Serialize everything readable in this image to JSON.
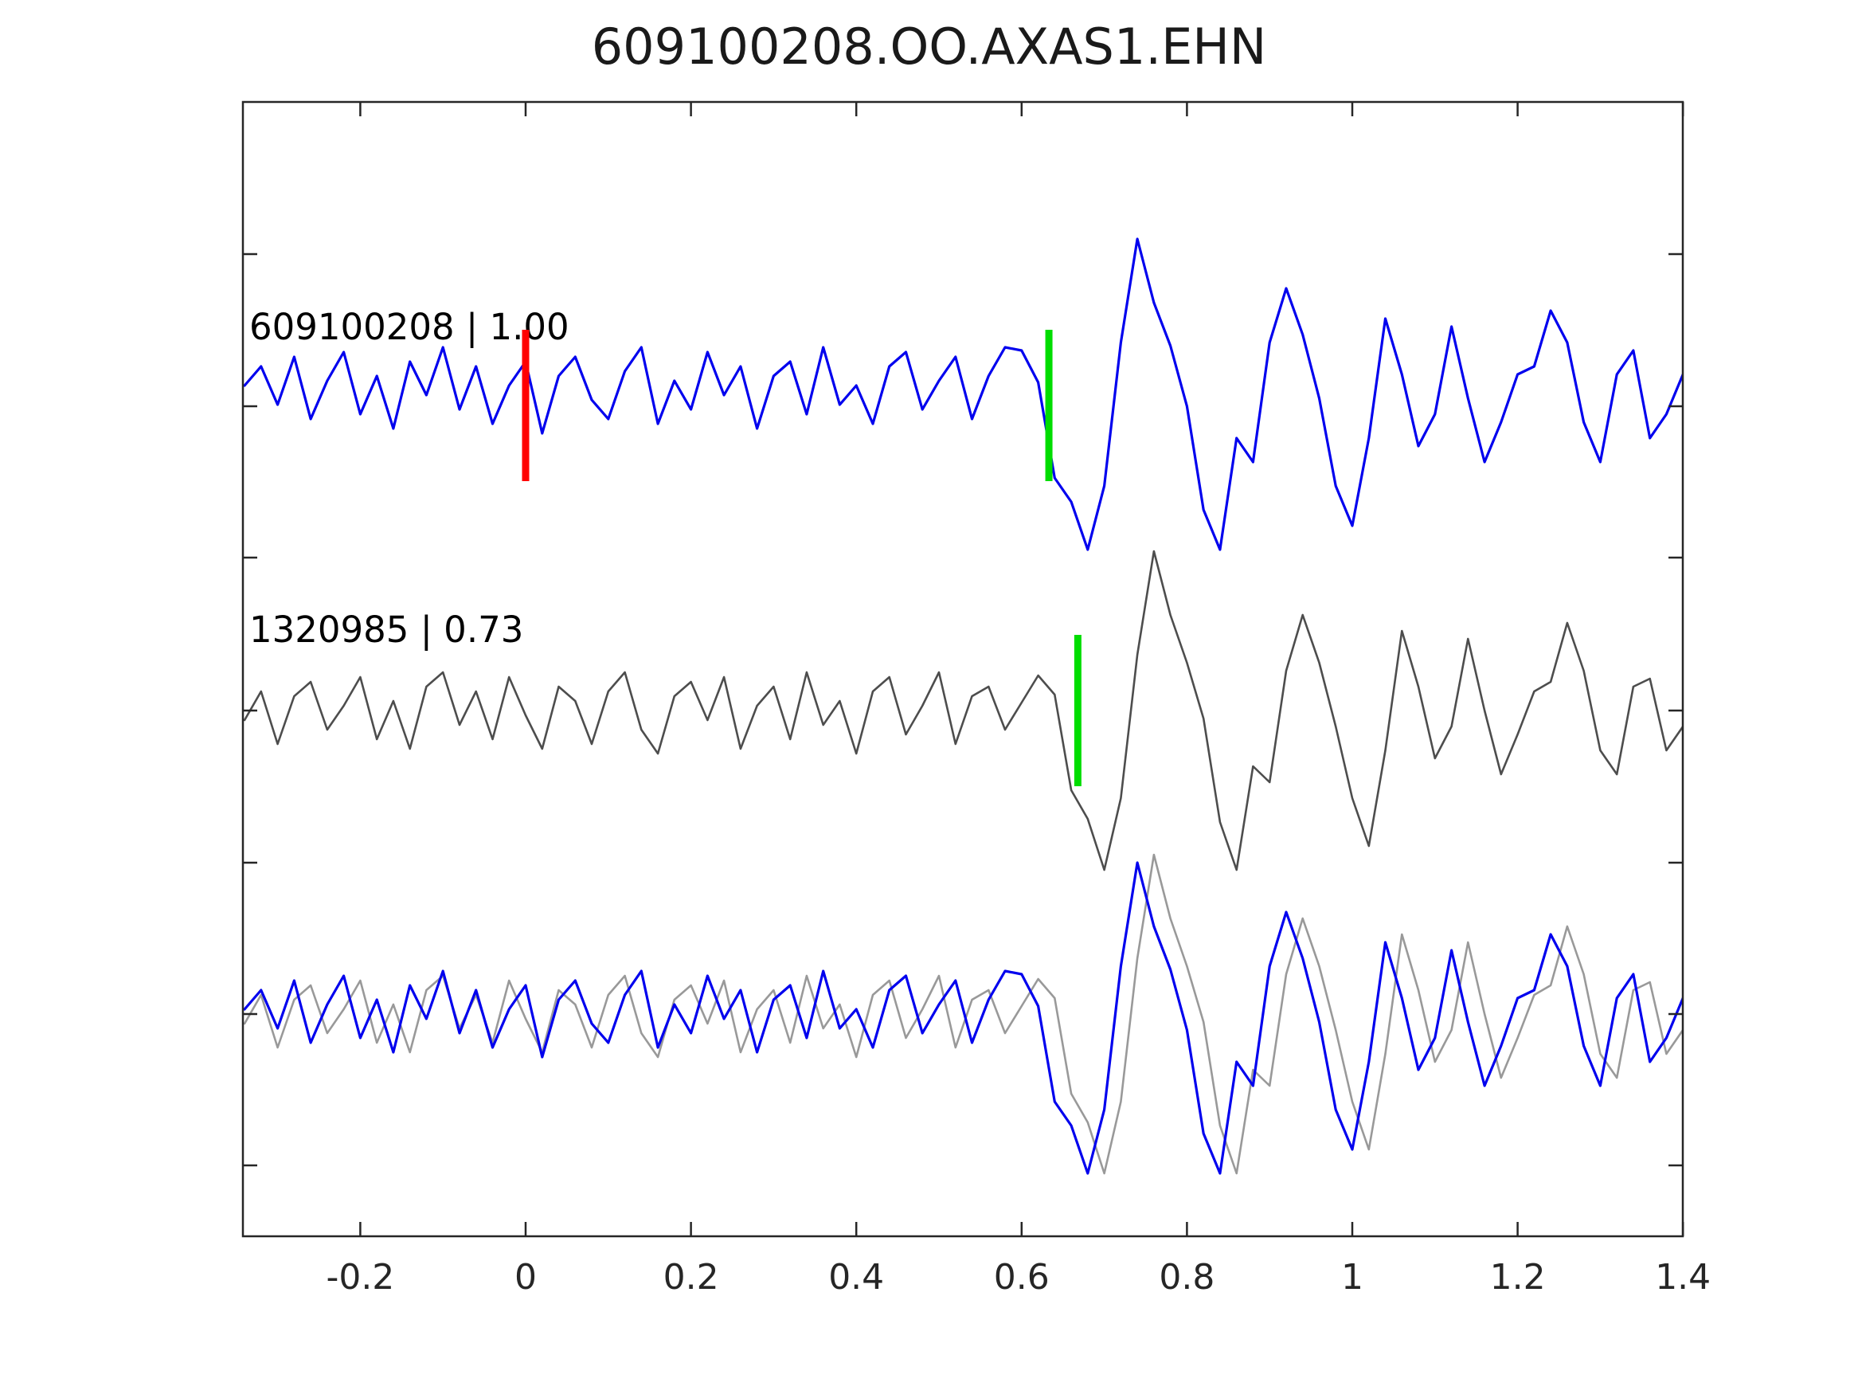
{
  "figure": {
    "title": "609100208.OO.AXAS1.EHN"
  },
  "chart_data": {
    "type": "line",
    "title": "609100208.OO.AXAS1.EHN",
    "xlabel": "",
    "ylabel": "",
    "xlim": [
      -0.342,
      1.4
    ],
    "grid": false,
    "legend": "none",
    "x_ticks": [
      -0.2,
      0,
      0.2,
      0.4,
      0.6,
      0.8,
      1,
      1.2,
      1.4
    ],
    "x_tick_labels": [
      "-0.2",
      "0",
      "0.2",
      "0.4",
      "0.6",
      "0.8",
      "1",
      "1.2",
      "1.4"
    ],
    "colors": {
      "template_trace": "#0000ee",
      "candidate_trace": "#4d4d4d",
      "candidate_overlay_trace": "#999999",
      "pick_marker": "#ff0000",
      "align_marker": "#00dd00",
      "axis": "#262626"
    },
    "sampling": {
      "x0": -0.34,
      "dx": 0.02
    },
    "panels": [
      {
        "name": "template-panel",
        "trace_id": "609100208",
        "correlation": "1.00",
        "label": "609100208 | 1.00",
        "traces": [
          {
            "series": "template",
            "color": "#0000ee",
            "width": 3.2
          }
        ],
        "markers": [
          {
            "name": "pick-marker",
            "x": 0.0,
            "color": "#ff0000"
          },
          {
            "name": "align-marker",
            "x": 0.633,
            "color": "#00dd00"
          }
        ]
      },
      {
        "name": "candidate-panel",
        "trace_id": "1320985",
        "correlation": "0.73",
        "label": "1320985 | 0.73",
        "traces": [
          {
            "series": "candidate",
            "color": "#4d4d4d",
            "width": 2.6
          }
        ],
        "markers": [
          {
            "name": "align-marker",
            "x": 0.668,
            "color": "#00dd00"
          }
        ]
      },
      {
        "name": "overlay-panel",
        "label": "",
        "traces": [
          {
            "series": "candidate",
            "color": "#999999",
            "width": 2.6
          },
          {
            "series": "template",
            "color": "#0000ee",
            "width": 3.2
          }
        ],
        "markers": []
      }
    ],
    "series": {
      "template": [
        0.03,
        0.15,
        -0.09,
        0.21,
        -0.18,
        0.06,
        0.24,
        -0.15,
        0.09,
        -0.24,
        0.18,
        -0.03,
        0.27,
        -0.12,
        0.15,
        -0.21,
        0.03,
        0.18,
        -0.27,
        0.09,
        0.21,
        -0.06,
        -0.18,
        0.12,
        0.27,
        -0.21,
        0.06,
        -0.12,
        0.24,
        -0.03,
        0.15,
        -0.24,
        0.09,
        0.18,
        -0.15,
        0.27,
        -0.09,
        0.03,
        -0.21,
        0.15,
        0.24,
        -0.12,
        0.06,
        0.21,
        -0.18,
        0.09,
        0.27,
        0.25,
        0.05,
        -0.55,
        -0.7,
        -1.0,
        -0.6,
        0.3,
        0.95,
        0.55,
        0.28,
        -0.1,
        -0.75,
        -1.0,
        -0.3,
        -0.45,
        0.3,
        0.64,
        0.35,
        -0.05,
        -0.6,
        -0.85,
        -0.3,
        0.45,
        0.1,
        -0.35,
        -0.15,
        0.4,
        -0.05,
        -0.45,
        -0.2,
        0.1,
        0.15,
        0.5,
        0.3,
        -0.2,
        -0.45,
        0.1,
        0.25,
        -0.3,
        -0.15,
        0.1
      ],
      "candidate": [
        -0.06,
        0.12,
        -0.21,
        0.09,
        0.18,
        -0.12,
        0.03,
        0.21,
        -0.18,
        0.06,
        -0.24,
        0.15,
        0.24,
        -0.09,
        0.12,
        -0.18,
        0.21,
        -0.03,
        -0.24,
        0.15,
        0.06,
        -0.21,
        0.12,
        0.24,
        -0.12,
        -0.27,
        0.09,
        0.18,
        -0.06,
        0.21,
        -0.24,
        0.03,
        0.15,
        -0.18,
        0.24,
        -0.09,
        0.06,
        -0.27,
        0.12,
        0.21,
        -0.15,
        0.03,
        0.24,
        -0.21,
        0.09,
        0.15,
        -0.12,
        0.05,
        0.22,
        0.1,
        -0.5,
        -0.68,
        -1.0,
        -0.55,
        0.35,
        1.0,
        0.6,
        0.3,
        -0.05,
        -0.7,
        -1.0,
        -0.35,
        -0.45,
        0.25,
        0.6,
        0.3,
        -0.1,
        -0.55,
        -0.85,
        -0.25,
        0.5,
        0.15,
        -0.3,
        -0.1,
        0.45,
        0.0,
        -0.4,
        -0.15,
        0.12,
        0.18,
        0.55,
        0.25,
        -0.25,
        -0.4,
        0.15,
        0.2,
        -0.25,
        -0.1
      ]
    }
  }
}
